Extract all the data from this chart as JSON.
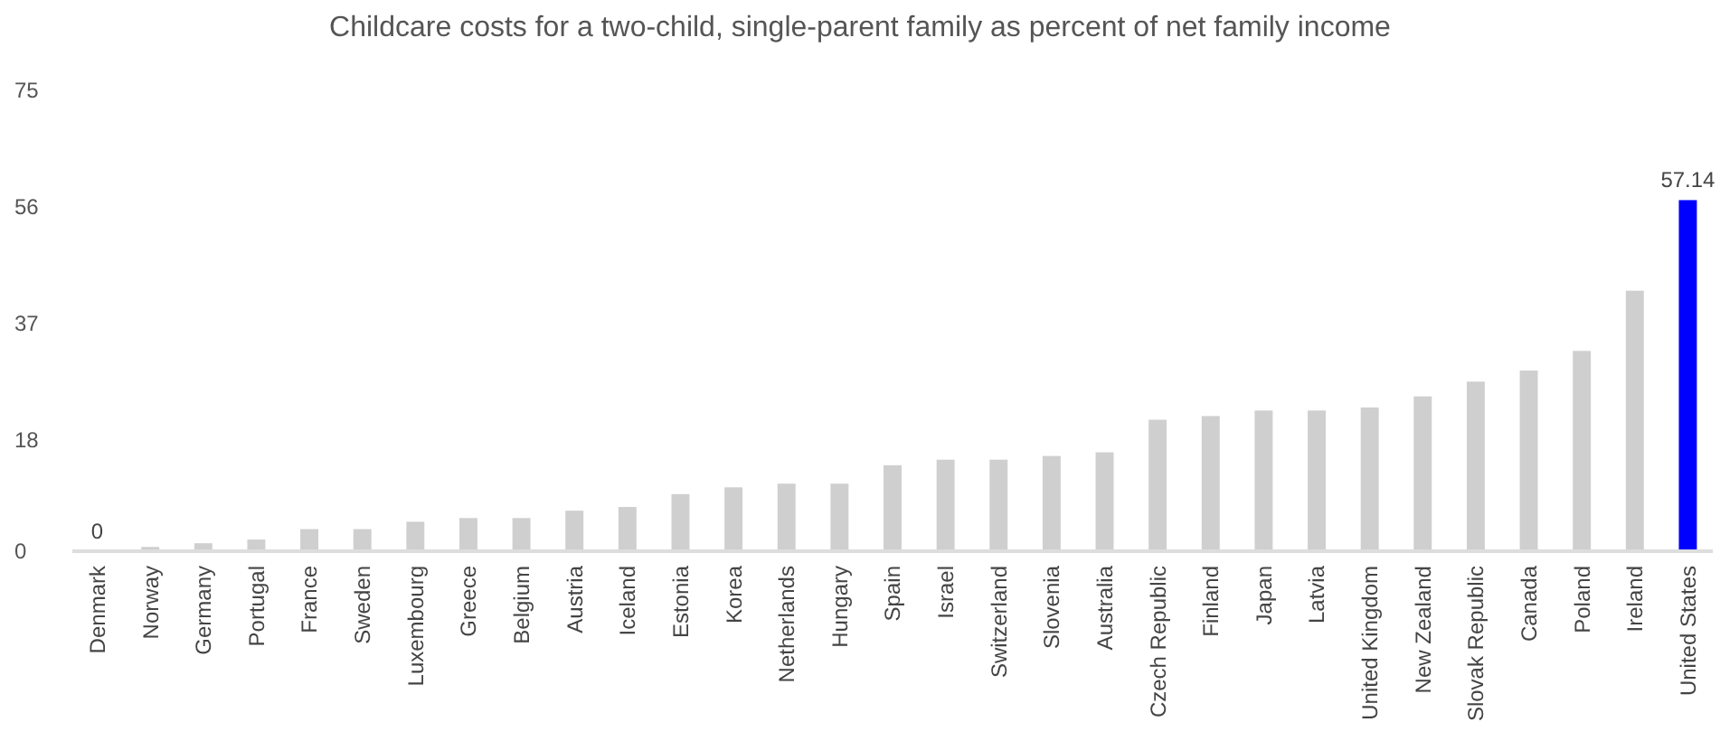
{
  "chart_data": {
    "type": "bar",
    "title": "Childcare costs for a two-child, single-parent family as percent of net family income",
    "categories": [
      "Denmark",
      "Norway",
      "Germany",
      "Portugal",
      "France",
      "Sweden",
      "Luxembourg",
      "Greece",
      "Belgium",
      "Austria",
      "Iceland",
      "Estonia",
      "Korea",
      "Netherlands",
      "Hungary",
      "Spain",
      "Israel",
      "Switzerland",
      "Slovenia",
      "Australia",
      "Czech Republic",
      "Finland",
      "Japan",
      "Latvia",
      "United Kingdom",
      "New Zealand",
      "Slovak Republic",
      "Canada",
      "Poland",
      "Ireland",
      "United States"
    ],
    "values": [
      0,
      0.7,
      1.3,
      1.9,
      3.6,
      3.6,
      4.8,
      5.4,
      5.4,
      6.6,
      7.2,
      9.3,
      10.4,
      11.0,
      11.0,
      14.0,
      14.9,
      14.9,
      15.5,
      16.1,
      21.4,
      22.0,
      22.9,
      22.9,
      23.4,
      25.2,
      27.6,
      29.4,
      32.6,
      42.4,
      57.14
    ],
    "colors": [
      "#d0cfcf",
      "#d0cfcf",
      "#d0cfcf",
      "#d0cfcf",
      "#d0cfcf",
      "#d0cfcf",
      "#d0cfcf",
      "#d0cfcf",
      "#d0cfcf",
      "#d0cfcf",
      "#d0cfcf",
      "#d0cfcf",
      "#d0cfcf",
      "#d0cfcf",
      "#d0cfcf",
      "#d0cfcf",
      "#d0cfcf",
      "#d0cfcf",
      "#d0cfcf",
      "#d0cfcf",
      "#d0cfcf",
      "#d0cfcf",
      "#d0cfcf",
      "#d0cfcf",
      "#d0cfcf",
      "#d0cfcf",
      "#d0cfcf",
      "#d0cfcf",
      "#d0cfcf",
      "#d0cfcf",
      "#0000ff"
    ],
    "value_labels": [
      "0",
      null,
      null,
      null,
      null,
      null,
      null,
      null,
      null,
      null,
      null,
      null,
      null,
      null,
      null,
      null,
      null,
      null,
      null,
      null,
      null,
      null,
      null,
      null,
      null,
      null,
      null,
      null,
      null,
      null,
      "57.14"
    ],
    "ylim": [
      0,
      75
    ],
    "yticks": [
      0,
      18,
      37,
      56,
      75
    ],
    "grid": false
  }
}
